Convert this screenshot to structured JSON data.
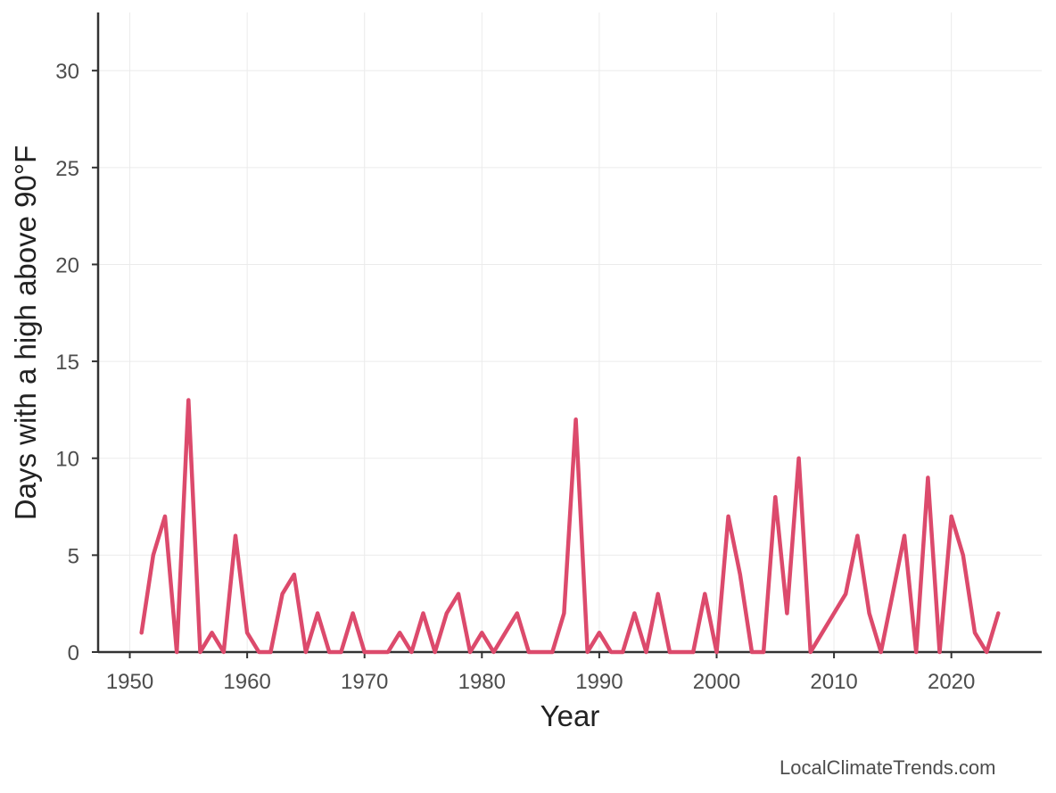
{
  "chart_data": {
    "type": "line",
    "xlabel": "Year",
    "ylabel": "Days with a high above 90°F",
    "xlim": [
      1947.3,
      2027.7
    ],
    "ylim": [
      0,
      33
    ],
    "xticks": [
      1950,
      1960,
      1970,
      1980,
      1990,
      2000,
      2010,
      2020
    ],
    "yticks": [
      0,
      5,
      10,
      15,
      20,
      25,
      30
    ],
    "grid": true,
    "series": [
      {
        "color": "#dc4a6c",
        "x": [
          1951,
          1952,
          1953,
          1954,
          1955,
          1956,
          1957,
          1958,
          1959,
          1960,
          1961,
          1962,
          1963,
          1964,
          1965,
          1966,
          1967,
          1968,
          1969,
          1970,
          1971,
          1972,
          1973,
          1974,
          1975,
          1976,
          1977,
          1978,
          1979,
          1980,
          1981,
          1982,
          1983,
          1984,
          1985,
          1986,
          1987,
          1988,
          1989,
          1990,
          1991,
          1992,
          1993,
          1994,
          1995,
          1996,
          1997,
          1998,
          1999,
          2000,
          2001,
          2002,
          2003,
          2004,
          2005,
          2006,
          2007,
          2008,
          2009,
          2010,
          2011,
          2012,
          2013,
          2014,
          2015,
          2016,
          2017,
          2018,
          2019,
          2020,
          2021,
          2022,
          2023,
          2024
        ],
        "y": [
          1,
          5,
          7,
          0,
          13,
          0,
          1,
          0,
          6,
          1,
          0,
          0,
          3,
          4,
          0,
          2,
          0,
          0,
          2,
          0,
          0,
          0,
          1,
          0,
          2,
          0,
          2,
          3,
          0,
          1,
          0,
          1,
          2,
          0,
          0,
          0,
          2,
          12,
          0,
          1,
          0,
          0,
          2,
          0,
          3,
          0,
          0,
          0,
          3,
          0,
          7,
          4,
          0,
          0,
          8,
          2,
          10,
          0,
          1,
          2,
          3,
          6,
          2,
          0,
          3,
          6,
          0,
          9,
          0,
          7,
          5,
          1,
          0,
          2
        ]
      }
    ]
  },
  "credit": "LocalClimateTrends.com"
}
